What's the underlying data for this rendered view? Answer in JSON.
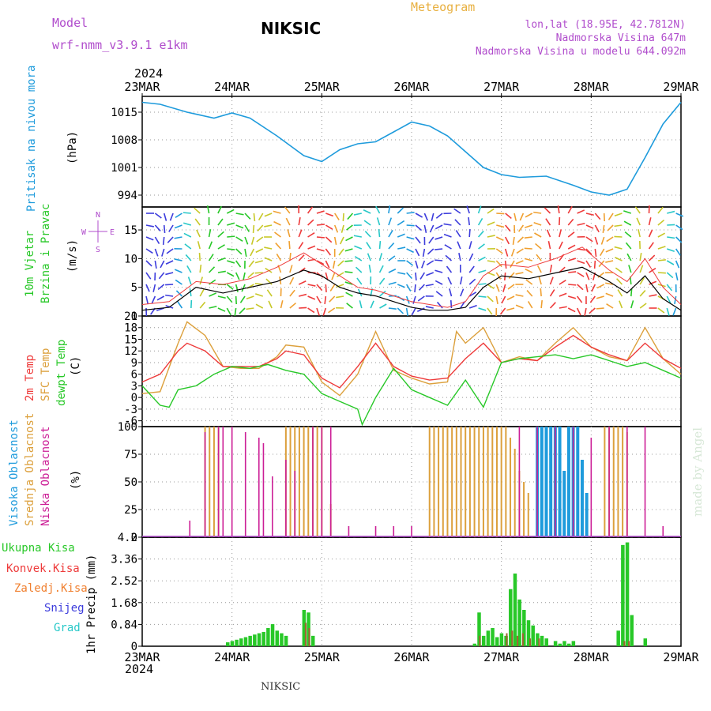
{
  "header": {
    "model_label": "Model",
    "model_name": "wrf-nmm_v3.9.1 e1km",
    "station": "NIKSIC",
    "meteogram": "Meteogram",
    "lonlat": "lon,lat (18.95E, 42.7812N)",
    "elevation": "Nadmorska Visina 647m",
    "model_elevation": "Nadmorska Visina u modelu 644.092m",
    "watermark": "made by Angel",
    "footer_station": "NIKSIC",
    "year_top": "2024",
    "year_bottom": "2024"
  },
  "colors": {
    "pressure": "#1e9bdc",
    "temp2m": "#ee3a3a",
    "sfc": "#dca03c",
    "dew": "#28c828",
    "purple": "#b04ccc",
    "magenta": "#cc1e96",
    "cyan": "#28c8c8",
    "blue": "#3c3cdc"
  },
  "chart_data": [
    {
      "type": "line",
      "panel": "pressure",
      "ylabel": [
        "Pritisak na nivou mora",
        "(hPa)"
      ],
      "x_ticks": [
        "23MAR",
        "24MAR",
        "25MAR",
        "26MAR",
        "27MAR",
        "28MAR",
        "29MAR"
      ],
      "x_range_days": [
        0,
        6
      ],
      "y_ticks": [
        994,
        1001,
        1008,
        1015
      ],
      "ylim": [
        991,
        1019
      ],
      "series": [
        {
          "x": [
            0,
            0.2,
            0.5,
            0.8,
            1.0,
            1.2,
            1.5,
            1.8,
            2.0,
            2.2,
            2.4,
            2.6,
            2.8,
            3.0,
            3.2,
            3.4,
            3.6,
            3.8,
            4.0,
            4.2,
            4.5,
            4.8,
            5.0,
            5.2,
            5.4,
            5.6,
            5.8,
            6.0
          ],
          "values": [
            1017.5,
            1017,
            1015,
            1013.5,
            1014.8,
            1013.5,
            1009,
            1004,
            1002.5,
            1005.5,
            1007,
            1007.5,
            1010,
            1012.5,
            1011.5,
            1009,
            1005,
            1001,
            999.2,
            998.5,
            998.8,
            996.5,
            994.8,
            994,
            995.5,
            1003.5,
            1012,
            1017.5
          ]
        }
      ]
    },
    {
      "type": "line",
      "panel": "wind",
      "ylabel": [
        "10m Vjetar",
        "Brzina i Pravac",
        "(m/s)"
      ],
      "compass": [
        "N",
        "W",
        "E",
        "S"
      ],
      "y_ticks": [
        0,
        5,
        10,
        15
      ],
      "ylim": [
        0,
        19
      ],
      "series": [
        {
          "name": "speed",
          "x": [
            0,
            0.3,
            0.6,
            0.9,
            1.2,
            1.5,
            1.8,
            2.0,
            2.2,
            2.4,
            2.6,
            2.8,
            3.0,
            3.2,
            3.4,
            3.6,
            3.8,
            4.0,
            4.3,
            4.6,
            4.9,
            5.2,
            5.4,
            5.6,
            5.8,
            6.0
          ],
          "values": [
            1,
            1.5,
            5,
            4,
            5,
            6,
            8,
            7,
            5,
            4,
            3.5,
            2.5,
            1.5,
            1,
            1,
            1.5,
            5,
            7,
            6.5,
            7.5,
            8.5,
            6,
            4,
            7,
            3,
            1
          ]
        },
        {
          "name": "gust",
          "x": [
            0,
            0.3,
            0.6,
            0.9,
            1.2,
            1.5,
            1.8,
            2.0,
            2.2,
            2.4,
            2.6,
            2.8,
            3.0,
            3.2,
            3.4,
            3.6,
            3.8,
            4.0,
            4.3,
            4.6,
            4.9,
            5.2,
            5.4,
            5.6,
            5.8,
            6.0
          ],
          "values": [
            2,
            2.5,
            6,
            5.5,
            6.5,
            8.5,
            11,
            9,
            7,
            5,
            4.5,
            3.5,
            2.5,
            2,
            1.5,
            2.5,
            7,
            9,
            8.5,
            10,
            12,
            8,
            6,
            10,
            5,
            2
          ]
        }
      ]
    },
    {
      "type": "line",
      "panel": "temperature",
      "ylabel": [
        "2m Temp",
        "SFC Temp",
        "dewpt Temp",
        "(C)"
      ],
      "y_ticks": [
        -6,
        -3,
        0,
        3,
        6,
        9,
        12,
        15,
        18,
        21
      ],
      "ylim": [
        -7.5,
        21
      ],
      "series": [
        {
          "name": "2m Temp",
          "x": [
            0,
            0.2,
            0.4,
            0.5,
            0.7,
            0.9,
            1.1,
            1.3,
            1.5,
            1.6,
            1.8,
            2.0,
            2.2,
            2.4,
            2.6,
            2.8,
            3.0,
            3.2,
            3.4,
            3.6,
            3.8,
            4.0,
            4.2,
            4.4,
            4.6,
            4.8,
            5.0,
            5.2,
            5.4,
            5.6,
            5.8,
            6.0
          ],
          "values": [
            4,
            6,
            12,
            14,
            12,
            8,
            8,
            8,
            10,
            12,
            11,
            5,
            2.5,
            8,
            14,
            8,
            5.5,
            4.5,
            5,
            10,
            14,
            9,
            10,
            9.5,
            13,
            16,
            13,
            11,
            9.5,
            14,
            10,
            7.5
          ]
        },
        {
          "name": "SFC Temp",
          "x": [
            0,
            0.2,
            0.4,
            0.5,
            0.7,
            0.9,
            1.1,
            1.3,
            1.5,
            1.6,
            1.8,
            2.0,
            2.2,
            2.4,
            2.6,
            2.8,
            3.0,
            3.2,
            3.4,
            3.5,
            3.6,
            3.8,
            4.0,
            4.2,
            4.4,
            4.6,
            4.8,
            5.0,
            5.2,
            5.4,
            5.6,
            5.8,
            6.0
          ],
          "values": [
            1,
            1.5,
            14,
            19.5,
            16,
            8,
            7.5,
            7.5,
            10.5,
            13.5,
            13,
            4,
            0.5,
            6,
            17,
            7,
            5,
            3.5,
            4,
            17,
            14,
            18,
            9,
            10.5,
            9.5,
            14,
            18,
            13,
            10.5,
            9.5,
            18,
            10,
            6
          ]
        },
        {
          "name": "dewpt Temp",
          "x": [
            0,
            0.2,
            0.3,
            0.4,
            0.6,
            0.8,
            1.0,
            1.2,
            1.4,
            1.6,
            1.8,
            2.0,
            2.2,
            2.4,
            2.45,
            2.6,
            2.8,
            3.0,
            3.2,
            3.4,
            3.6,
            3.8,
            4.0,
            4.2,
            4.4,
            4.6,
            4.8,
            5.0,
            5.2,
            5.4,
            5.6,
            5.8,
            6.0
          ],
          "values": [
            3,
            -2,
            -2.5,
            2,
            3,
            6,
            8,
            7.5,
            8.5,
            7,
            6,
            1,
            -1,
            -3,
            -7,
            0,
            7.5,
            2,
            0,
            -2,
            4.5,
            -2.5,
            9,
            10,
            10.5,
            11,
            10,
            11,
            9.5,
            8,
            9,
            7,
            5
          ]
        }
      ]
    },
    {
      "type": "bar",
      "panel": "cloud",
      "ylabel": [
        "Visoka Oblacnost",
        "Srednja Oblacnost",
        "Niska Oblacnost",
        "(%)"
      ],
      "y_ticks": [
        0,
        25,
        50,
        75,
        100
      ],
      "ylim": [
        0,
        100
      ],
      "note": "overlapping hourly bars; low (magenta), mid (orange), high (blue)",
      "low": {
        "x": [
          0.53,
          0.7,
          0.85,
          0.9,
          1.0,
          1.15,
          1.3,
          1.35,
          1.45,
          1.6,
          1.7,
          1.9,
          2.0,
          2.1,
          2.3,
          2.6,
          2.8,
          3.0,
          4.2,
          4.4,
          4.6,
          4.8,
          5.0,
          5.2,
          5.4,
          5.6,
          5.8
        ],
        "values": [
          15,
          95,
          100,
          100,
          100,
          95,
          90,
          85,
          55,
          70,
          60,
          100,
          100,
          100,
          10,
          10,
          10,
          10,
          100,
          100,
          100,
          100,
          90,
          100,
          100,
          100,
          10
        ]
      },
      "mid": {
        "x": [
          0.7,
          0.75,
          0.8,
          0.85,
          1.6,
          1.65,
          1.7,
          1.75,
          1.8,
          1.85,
          1.9,
          1.95,
          2.0,
          2.1,
          3.2,
          3.25,
          3.3,
          3.35,
          3.4,
          3.45,
          3.5,
          3.55,
          3.6,
          3.65,
          3.7,
          3.75,
          3.8,
          3.85,
          3.9,
          3.95,
          4.0,
          4.05,
          4.1,
          4.15,
          4.2,
          4.25,
          4.3,
          5.15,
          5.2,
          5.25,
          5.3,
          5.35,
          5.4
        ],
        "values": [
          100,
          100,
          100,
          100,
          100,
          100,
          100,
          100,
          100,
          100,
          100,
          100,
          100,
          30,
          100,
          100,
          100,
          100,
          100,
          100,
          100,
          100,
          100,
          100,
          100,
          100,
          100,
          100,
          100,
          100,
          100,
          100,
          90,
          80,
          60,
          50,
          40,
          100,
          100,
          100,
          100,
          100,
          95
        ]
      },
      "high": {
        "x": [
          4.4,
          4.45,
          4.5,
          4.55,
          4.6,
          4.65,
          4.7,
          4.75,
          4.8,
          4.85,
          4.9,
          4.95
        ],
        "values": [
          100,
          100,
          100,
          100,
          100,
          100,
          60,
          100,
          100,
          100,
          70,
          40
        ]
      }
    },
    {
      "type": "bar",
      "panel": "precip",
      "ylabel": [
        "1hr Precip (mm)"
      ],
      "legend": [
        "Ukupna Kisa",
        "Konvek.Kisa",
        "Zaledj.Kisa",
        "Snijeg",
        "Grad"
      ],
      "y_ticks": [
        0,
        0.84,
        1.68,
        2.52,
        3.36,
        4.2
      ],
      "ylim": [
        0,
        4.2
      ],
      "total": {
        "x": [
          0.95,
          1.0,
          1.05,
          1.1,
          1.15,
          1.2,
          1.25,
          1.3,
          1.35,
          1.4,
          1.45,
          1.5,
          1.55,
          1.6,
          1.8,
          1.85,
          1.9,
          3.7,
          3.75,
          3.8,
          3.85,
          3.9,
          3.95,
          4.0,
          4.05,
          4.1,
          4.15,
          4.2,
          4.25,
          4.3,
          4.35,
          4.4,
          4.45,
          4.5,
          4.6,
          4.65,
          4.7,
          4.75,
          4.8,
          5.3,
          5.35,
          5.4,
          5.45,
          5.6
        ],
        "values": [
          0.15,
          0.2,
          0.25,
          0.3,
          0.35,
          0.4,
          0.45,
          0.5,
          0.55,
          0.7,
          0.85,
          0.6,
          0.5,
          0.4,
          1.4,
          1.3,
          0.4,
          0.1,
          1.3,
          0.4,
          0.6,
          0.7,
          0.35,
          0.5,
          0.4,
          2.2,
          2.8,
          1.8,
          1.4,
          1.0,
          0.8,
          0.5,
          0.4,
          0.3,
          0.2,
          0.1,
          0.2,
          0.1,
          0.2,
          0.6,
          3.9,
          4.0,
          1.2,
          0.3
        ]
      },
      "convective": {
        "x": [
          1.82,
          1.86,
          3.76,
          4.06,
          4.12,
          4.18,
          4.24,
          4.32,
          4.42,
          5.37,
          5.42
        ],
        "values": [
          0.9,
          0.7,
          0.4,
          0.5,
          0.6,
          0.4,
          0.5,
          0.3,
          0.3,
          0.2,
          0.2
        ]
      }
    }
  ]
}
